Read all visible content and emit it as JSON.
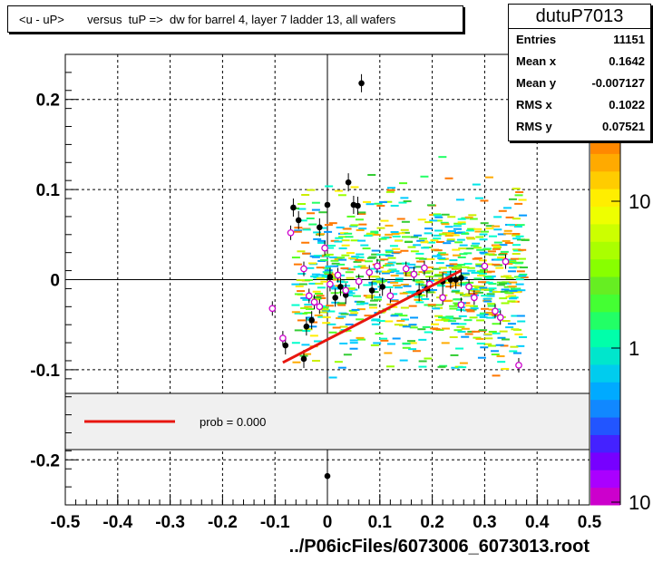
{
  "title": "<u - uP>       versus  tuP =>  dw for barrel 4, layer 7 ladder 13, all wafers",
  "stats": {
    "name": "dutuP7013",
    "rows": [
      {
        "label": "Entries",
        "value": "11151"
      },
      {
        "label": "Mean x",
        "value": "0.1642"
      },
      {
        "label": "Mean y",
        "value": "-0.007127"
      },
      {
        "label": "RMS x",
        "value": "0.1022"
      },
      {
        "label": "RMS y",
        "value": "0.07521"
      }
    ]
  },
  "legend": {
    "text": "prob = 0.000",
    "line_color": "#e8160f"
  },
  "x_axis_title": "../P06icFiles/6073006_6073013.root",
  "palette_labels": [
    "10",
    "1",
    "10"
  ],
  "chart_data": {
    "type": "scatter",
    "title": "<u - uP>       versus  tuP =>  dw for barrel 4, layer 7 ladder 13, all wafers",
    "xlabel": "../P06icFiles/6073006_6073013.root",
    "ylabel": "",
    "xlim": [
      -0.5,
      0.5
    ],
    "ylim": [
      -0.25,
      0.25
    ],
    "x_ticks": [
      "-0.5",
      "-0.4",
      "-0.3",
      "-0.2",
      "-0.1",
      "0",
      "0.1",
      "0.2",
      "0.3",
      "0.4",
      "0.5"
    ],
    "y_ticks": [
      "-0.2",
      "-0.1",
      "0",
      "0.1",
      "0.2"
    ],
    "grid": true,
    "black_points": [
      {
        "x": 0.065,
        "y": 0.218
      },
      {
        "x": 0.04,
        "y": 0.108
      },
      {
        "x": 0.05,
        "y": 0.083
      },
      {
        "x": 0.058,
        "y": 0.082
      },
      {
        "x": 0.0,
        "y": 0.083
      },
      {
        "x": -0.065,
        "y": 0.08
      },
      {
        "x": -0.055,
        "y": 0.066
      },
      {
        "x": -0.015,
        "y": 0.058
      },
      {
        "x": -0.08,
        "y": -0.073
      },
      {
        "x": -0.045,
        "y": -0.088
      },
      {
        "x": -0.04,
        "y": -0.052
      },
      {
        "x": -0.03,
        "y": -0.045
      },
      {
        "x": 0.005,
        "y": 0.003
      },
      {
        "x": 0.025,
        "y": -0.008
      },
      {
        "x": 0.035,
        "y": -0.017
      },
      {
        "x": 0.015,
        "y": -0.02
      },
      {
        "x": 0.085,
        "y": -0.012
      },
      {
        "x": 0.105,
        "y": -0.008
      },
      {
        "x": 0.175,
        "y": -0.014
      },
      {
        "x": 0.19,
        "y": -0.01
      },
      {
        "x": 0.22,
        "y": -0.002
      },
      {
        "x": 0.235,
        "y": 0.0
      },
      {
        "x": 0.245,
        "y": 0.0
      },
      {
        "x": 0.255,
        "y": 0.002
      },
      {
        "x": 0.0,
        "y": -0.218
      }
    ],
    "magenta_points": [
      {
        "x": -0.105,
        "y": -0.032
      },
      {
        "x": -0.085,
        "y": -0.065
      },
      {
        "x": -0.07,
        "y": 0.052
      },
      {
        "x": -0.045,
        "y": 0.012
      },
      {
        "x": -0.035,
        "y": -0.018
      },
      {
        "x": -0.025,
        "y": -0.025
      },
      {
        "x": -0.015,
        "y": -0.03
      },
      {
        "x": -0.005,
        "y": 0.035
      },
      {
        "x": 0.005,
        "y": -0.005
      },
      {
        "x": 0.02,
        "y": 0.005
      },
      {
        "x": 0.035,
        "y": -0.012
      },
      {
        "x": 0.06,
        "y": -0.002
      },
      {
        "x": 0.08,
        "y": 0.008
      },
      {
        "x": 0.095,
        "y": 0.015
      },
      {
        "x": 0.12,
        "y": -0.018
      },
      {
        "x": 0.15,
        "y": 0.012
      },
      {
        "x": 0.165,
        "y": 0.006
      },
      {
        "x": 0.185,
        "y": 0.013
      },
      {
        "x": 0.22,
        "y": -0.02
      },
      {
        "x": 0.255,
        "y": -0.028
      },
      {
        "x": 0.27,
        "y": -0.008
      },
      {
        "x": 0.28,
        "y": -0.02
      },
      {
        "x": 0.3,
        "y": 0.015
      },
      {
        "x": 0.32,
        "y": -0.035
      },
      {
        "x": 0.33,
        "y": -0.042
      },
      {
        "x": 0.34,
        "y": 0.02
      },
      {
        "x": 0.365,
        "y": -0.095
      },
      {
        "x": 0.195,
        "y": -0.005
      }
    ],
    "fit_line": {
      "x1": -0.085,
      "y1": -0.092,
      "x2": 0.255,
      "y2": 0.01
    },
    "colorbar": {
      "scale": "log",
      "tick_labels": [
        "10",
        "1",
        "10"
      ]
    }
  }
}
